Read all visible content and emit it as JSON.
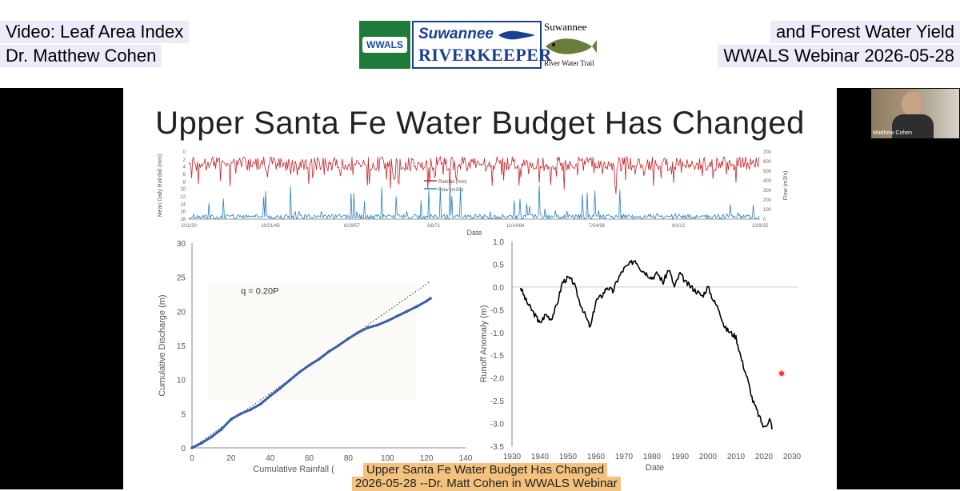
{
  "header": {
    "left_line1": "Video: Leaf Area Index",
    "left_line2": "Dr. Matthew Cohen",
    "right_line1": "and Forest Water Yield",
    "right_line2": "WWALS Webinar 2026-05-28",
    "logo_wwals_text": "WWALS",
    "logo_riverkeeper_line1": "Suwannee",
    "logo_riverkeeper_line2": "RIVERKEEPER",
    "logo_trail_line1": "Suwannee",
    "logo_trail_line2": "River Water Trail"
  },
  "slide": {
    "title": "Upper Santa Fe Water Budget Has Changed"
  },
  "webcam": {
    "name": "Matthew Cohen"
  },
  "overlay": {
    "line1": "Upper Santa Fe Water Budget Has Changed",
    "line2": "2026-05-28 --Dr. Matt Cohen in WWALS Webinar"
  },
  "colors": {
    "rainfall": "#c1272d",
    "flow": "#2a7fc1",
    "discharge": "#3a5ea8",
    "anomaly": "#000000",
    "caption_bg": "#ecebf7",
    "overlay_bg": "#f2c27e"
  },
  "chart_data": [
    {
      "type": "line",
      "xlabel": "Date",
      "ylabel": "Mean Daily Rainfall (mm)",
      "y2label": "Flow (m3/s)",
      "x_ticks": [
        "2/11/30",
        "10/21/43",
        "6/29/57",
        "3/8/71",
        "11/14/84",
        "7/24/98",
        "4/1/12",
        "12/9/25"
      ],
      "y_ticks": [
        "0",
        "2",
        "4",
        "6",
        "8",
        "10",
        "12",
        "14",
        "16",
        "18"
      ],
      "y2_ticks": [
        "700",
        "600",
        "500",
        "400",
        "300",
        "200",
        "100",
        "0"
      ],
      "series": [
        {
          "name": "Rainfall (mm)"
        },
        {
          "name": "Flow (m3/s)"
        }
      ]
    },
    {
      "type": "scatter",
      "xlabel": "Cumulative Rainfall (",
      "ylabel": "Cumulative Discharge (m)",
      "annotation": "q = 0.20P",
      "x_ticks": [
        "0",
        "20",
        "40",
        "60",
        "80",
        "100",
        "120",
        "140"
      ],
      "y_ticks": [
        "0",
        "5",
        "10",
        "15",
        "20",
        "25",
        "30"
      ],
      "xlim": [
        0,
        140
      ],
      "ylim": [
        0,
        30
      ],
      "series": [
        {
          "x": [
            0,
            5,
            10,
            15,
            20,
            25,
            30,
            35,
            40,
            45,
            50,
            55,
            60,
            65,
            70,
            75,
            80,
            85,
            90,
            95,
            100,
            105,
            110,
            115,
            120,
            122
          ],
          "y": [
            0,
            0.7,
            1.6,
            2.7,
            4.2,
            5.0,
            5.6,
            6.4,
            7.6,
            8.7,
            9.9,
            11.1,
            12.1,
            13.0,
            14.1,
            15.0,
            16.0,
            16.9,
            17.6,
            18.0,
            18.6,
            19.3,
            20.0,
            20.7,
            21.5,
            21.9
          ]
        }
      ],
      "fit_line": {
        "x": [
          0,
          122
        ],
        "y": [
          0,
          24.4
        ]
      }
    },
    {
      "type": "line",
      "xlabel": "Date",
      "ylabel": "Runoff Anomaly (m)",
      "x_ticks": [
        "1930",
        "1940",
        "1950",
        "1960",
        "1970",
        "1980",
        "1990",
        "2000",
        "2010",
        "2020",
        "2030"
      ],
      "y_ticks": [
        "1.0",
        "0.5",
        "0.0",
        "-0.5",
        "-1.0",
        "-1.5",
        "-2.0",
        "-2.5",
        "-3.0",
        "-3.5"
      ],
      "xlim": [
        1930,
        2030
      ],
      "ylim": [
        -3.5,
        1.0
      ],
      "series": [
        {
          "x": [
            1933,
            1935,
            1937,
            1939,
            1940,
            1942,
            1944,
            1946,
            1948,
            1950,
            1952,
            1954,
            1956,
            1958,
            1960,
            1962,
            1964,
            1966,
            1968,
            1970,
            1972,
            1974,
            1976,
            1978,
            1980,
            1982,
            1984,
            1986,
            1988,
            1990,
            1992,
            1994,
            1996,
            1998,
            2000,
            2002,
            2004,
            2006,
            2008,
            2010,
            2012,
            2014,
            2016,
            2018,
            2020,
            2022,
            2023
          ],
          "y": [
            0.0,
            -0.3,
            -0.5,
            -0.7,
            -0.8,
            -0.6,
            -0.7,
            -0.4,
            0.1,
            0.2,
            0.1,
            -0.3,
            -0.6,
            -0.9,
            -0.3,
            -0.2,
            0.0,
            -0.1,
            0.2,
            0.4,
            0.5,
            0.6,
            0.4,
            0.3,
            0.2,
            0.3,
            0.1,
            0.4,
            0.0,
            0.3,
            0.1,
            0.0,
            -0.1,
            -0.2,
            0.0,
            -0.3,
            -0.5,
            -0.9,
            -1.0,
            -1.1,
            -1.6,
            -2.0,
            -2.5,
            -2.8,
            -3.1,
            -2.9,
            -3.1
          ]
        }
      ]
    }
  ]
}
